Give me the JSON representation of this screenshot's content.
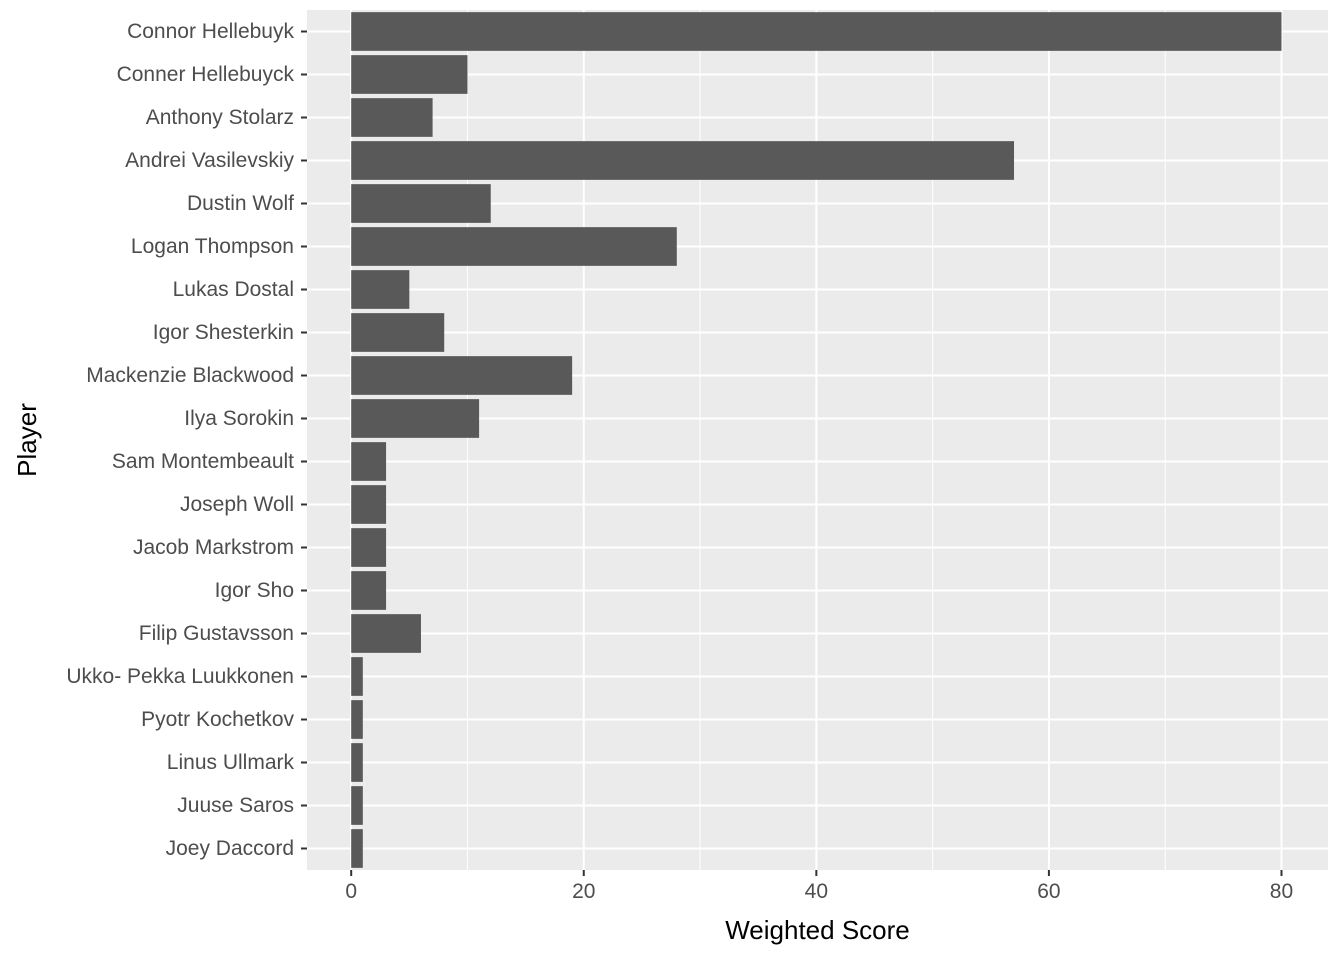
{
  "chart_data": {
    "type": "bar",
    "orientation": "horizontal",
    "xlabel": "Weighted Score",
    "ylabel": "Player",
    "xlim": [
      -3.8,
      84
    ],
    "x_ticks": [
      "0",
      "20",
      "40",
      "60",
      "80"
    ],
    "grid": true,
    "categories": [
      "Connor Hellebuyk",
      "Conner Hellebuyck",
      "Anthony Stolarz",
      "Andrei Vasilevskiy",
      "Dustin Wolf",
      "Logan Thompson",
      "Lukas Dostal",
      "Igor Shesterkin",
      "Mackenzie Blackwood",
      "Ilya Sorokin",
      "Sam Montembeault",
      "Joseph Woll",
      "Jacob Markstrom",
      "Igor Sho",
      "Filip Gustavsson",
      "Ukko- Pekka Luukkonen",
      "Pyotr Kochetkov",
      "Linus Ullmark",
      "Juuse Saros",
      "Joey Daccord"
    ],
    "values": [
      80,
      10,
      7,
      57,
      12,
      28,
      5,
      8,
      19,
      11,
      3,
      3,
      3,
      3,
      6,
      1,
      1,
      1,
      1,
      1
    ]
  },
  "colors": {
    "panel_background": "#ebebeb",
    "grid_major": "#ffffff",
    "bar_fill": "#595959",
    "tick_text": "#4d4d4d",
    "tick_mark": "#333333"
  }
}
